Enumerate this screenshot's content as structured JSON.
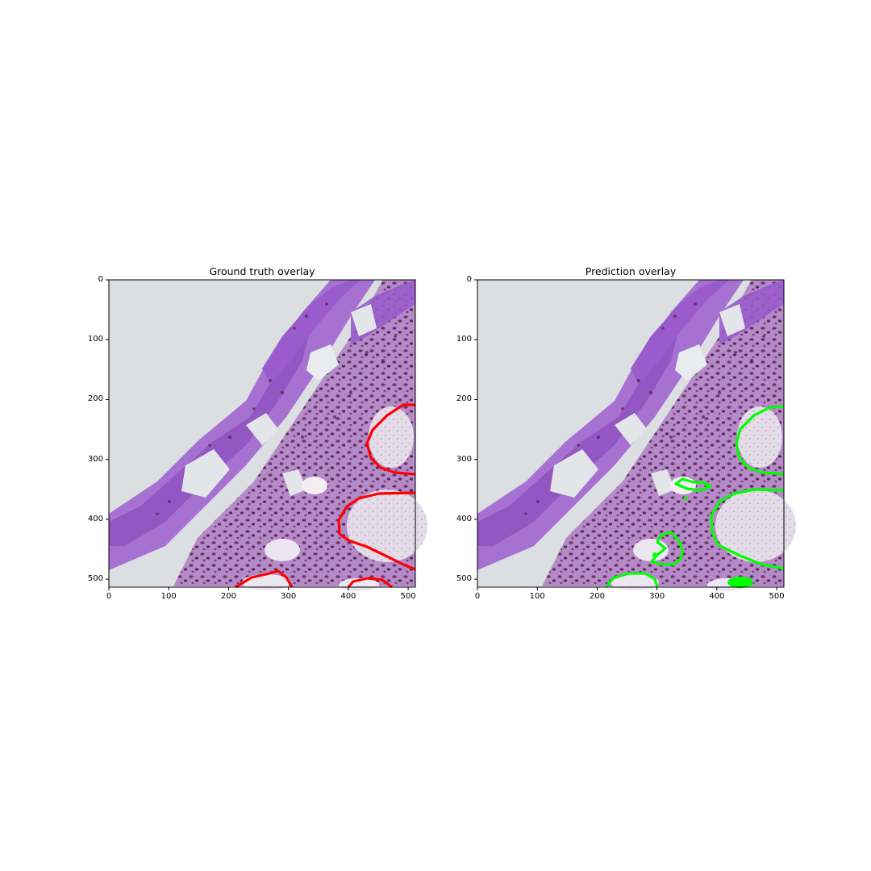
{
  "panels": [
    {
      "title": "Ground truth overlay",
      "overlay_color": "#ff0000",
      "xticks": [
        "0",
        "100",
        "200",
        "300",
        "400",
        "500"
      ],
      "yticks": [
        "0",
        "100",
        "200",
        "300",
        "400",
        "500"
      ]
    },
    {
      "title": "Prediction overlay",
      "overlay_color": "#00ff00",
      "xticks": [
        "0",
        "100",
        "200",
        "300",
        "400",
        "500"
      ],
      "yticks": [
        "0",
        "100",
        "200",
        "300",
        "400",
        "500"
      ]
    }
  ],
  "tissue_colors": {
    "background": "#dcdfe1",
    "stroma": "#a065cf",
    "stroma_light": "#c69ee0",
    "nuclei": "#5c2a55",
    "mucosa": "#b98fcb"
  }
}
